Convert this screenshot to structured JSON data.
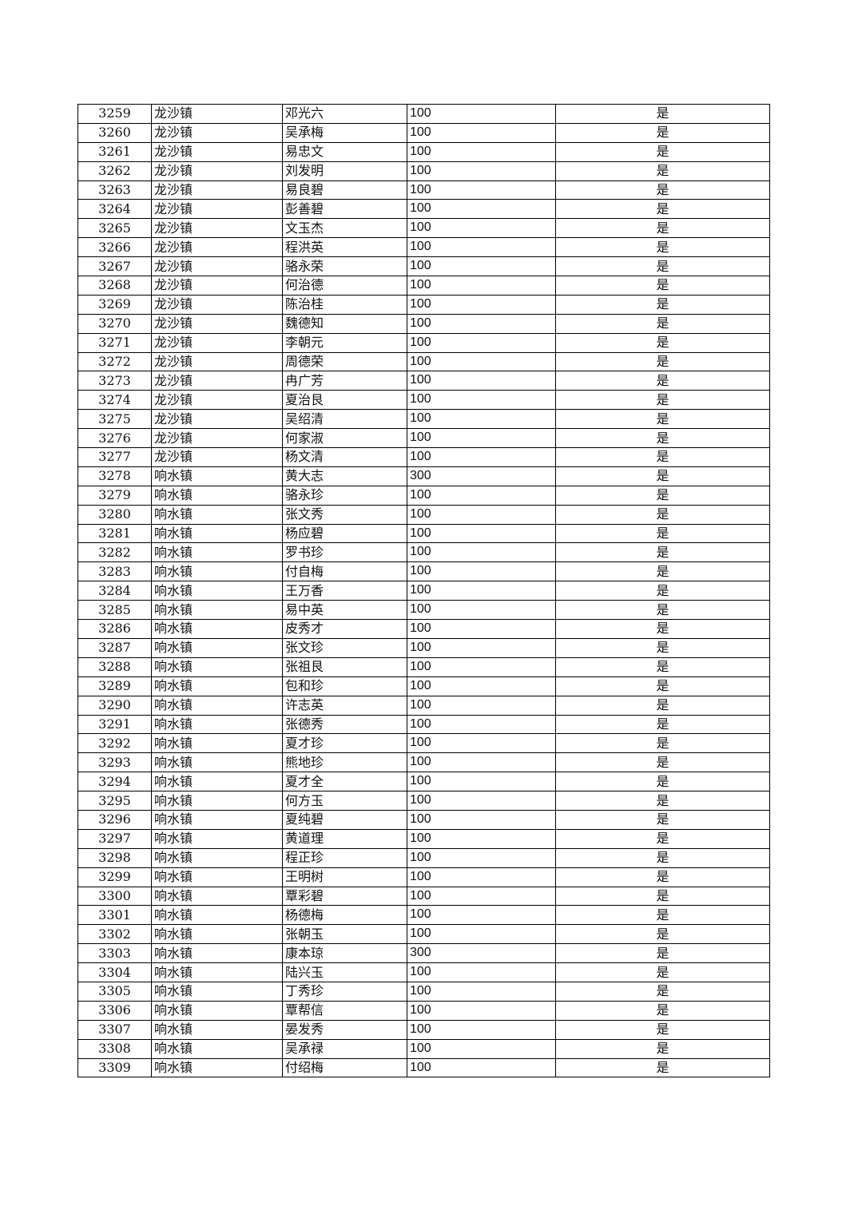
{
  "table": {
    "rows": [
      [
        "3259",
        "龙沙镇",
        "邓光六",
        "100",
        "是"
      ],
      [
        "3260",
        "龙沙镇",
        "吴承梅",
        "100",
        "是"
      ],
      [
        "3261",
        "龙沙镇",
        "易忠文",
        "100",
        "是"
      ],
      [
        "3262",
        "龙沙镇",
        "刘发明",
        "100",
        "是"
      ],
      [
        "3263",
        "龙沙镇",
        "易良碧",
        "100",
        "是"
      ],
      [
        "3264",
        "龙沙镇",
        "彭善碧",
        "100",
        "是"
      ],
      [
        "3265",
        "龙沙镇",
        "文玉杰",
        "100",
        "是"
      ],
      [
        "3266",
        "龙沙镇",
        "程洪英",
        "100",
        "是"
      ],
      [
        "3267",
        "龙沙镇",
        "骆永荣",
        "100",
        "是"
      ],
      [
        "3268",
        "龙沙镇",
        "何治德",
        "100",
        "是"
      ],
      [
        "3269",
        "龙沙镇",
        "陈治桂",
        "100",
        "是"
      ],
      [
        "3270",
        "龙沙镇",
        "魏德知",
        "100",
        "是"
      ],
      [
        "3271",
        "龙沙镇",
        "李朝元",
        "100",
        "是"
      ],
      [
        "3272",
        "龙沙镇",
        "周德荣",
        "100",
        "是"
      ],
      [
        "3273",
        "龙沙镇",
        "冉广芳",
        "100",
        "是"
      ],
      [
        "3274",
        "龙沙镇",
        "夏治艮",
        "100",
        "是"
      ],
      [
        "3275",
        "龙沙镇",
        "吴绍清",
        "100",
        "是"
      ],
      [
        "3276",
        "龙沙镇",
        "何家淑",
        "100",
        "是"
      ],
      [
        "3277",
        "龙沙镇",
        "杨文清",
        "100",
        "是"
      ],
      [
        "3278",
        "响水镇",
        "黄大志",
        "300",
        "是"
      ],
      [
        "3279",
        "响水镇",
        "骆永珍",
        "100",
        "是"
      ],
      [
        "3280",
        "响水镇",
        "张文秀",
        "100",
        "是"
      ],
      [
        "3281",
        "响水镇",
        "杨应碧",
        "100",
        "是"
      ],
      [
        "3282",
        "响水镇",
        "罗书珍",
        "100",
        "是"
      ],
      [
        "3283",
        "响水镇",
        "付自梅",
        "100",
        "是"
      ],
      [
        "3284",
        "响水镇",
        "王万香",
        "100",
        "是"
      ],
      [
        "3285",
        "响水镇",
        "易中英",
        "100",
        "是"
      ],
      [
        "3286",
        "响水镇",
        "皮秀才",
        "100",
        "是"
      ],
      [
        "3287",
        "响水镇",
        "张文珍",
        "100",
        "是"
      ],
      [
        "3288",
        "响水镇",
        "张祖艮",
        "100",
        "是"
      ],
      [
        "3289",
        "响水镇",
        "包和珍",
        "100",
        "是"
      ],
      [
        "3290",
        "响水镇",
        "许志英",
        "100",
        "是"
      ],
      [
        "3291",
        "响水镇",
        "张德秀",
        "100",
        "是"
      ],
      [
        "3292",
        "响水镇",
        "夏才珍",
        "100",
        "是"
      ],
      [
        "3293",
        "响水镇",
        "熊地珍",
        "100",
        "是"
      ],
      [
        "3294",
        "响水镇",
        "夏才全",
        "100",
        "是"
      ],
      [
        "3295",
        "响水镇",
        "何方玉",
        "100",
        "是"
      ],
      [
        "3296",
        "响水镇",
        "夏纯碧",
        "100",
        "是"
      ],
      [
        "3297",
        "响水镇",
        "黄道理",
        "100",
        "是"
      ],
      [
        "3298",
        "响水镇",
        "程正珍",
        "100",
        "是"
      ],
      [
        "3299",
        "响水镇",
        "王明树",
        "100",
        "是"
      ],
      [
        "3300",
        "响水镇",
        "覃彩碧",
        "100",
        "是"
      ],
      [
        "3301",
        "响水镇",
        "杨德梅",
        "100",
        "是"
      ],
      [
        "3302",
        "响水镇",
        "张朝玉",
        "100",
        "是"
      ],
      [
        "3303",
        "响水镇",
        "康本琼",
        "300",
        "是"
      ],
      [
        "3304",
        "响水镇",
        "陆兴玉",
        "100",
        "是"
      ],
      [
        "3305",
        "响水镇",
        "丁秀珍",
        "100",
        "是"
      ],
      [
        "3306",
        "响水镇",
        "覃帮信",
        "100",
        "是"
      ],
      [
        "3307",
        "响水镇",
        "晏发秀",
        "100",
        "是"
      ],
      [
        "3308",
        "响水镇",
        "吴承禄",
        "100",
        "是"
      ],
      [
        "3309",
        "响水镇",
        "付绍梅",
        "100",
        "是"
      ]
    ]
  }
}
